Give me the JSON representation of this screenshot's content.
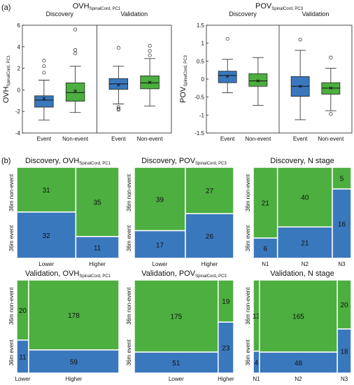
{
  "panel_labels": {
    "a": "(a)",
    "b": "(b)"
  },
  "colors": {
    "event": "#3a78be",
    "nonevent": "#4caf3f",
    "outline": "#1a1a1a",
    "divider": "#ffffff"
  },
  "chart_data": [
    {
      "type": "box",
      "title_main": "OVH",
      "title_sub": "SpinalCord, PC1",
      "ylabel_main": "OVH",
      "ylabel_sub": "SpinalCord, PC1",
      "ylim": [
        -4,
        6
      ],
      "yticks": [
        -4,
        -2,
        0,
        2,
        4,
        6
      ],
      "groups": [
        {
          "name": "Discovery",
          "boxes": [
            {
              "category": "Event",
              "color": "#3a78be",
              "whisker_low": -2.8,
              "q1": -1.6,
              "median": -0.95,
              "q3": -0.55,
              "whisker_high": 0.9,
              "mean": -0.8,
              "outliers": [
                1.6,
                2.2,
                2.7
              ]
            },
            {
              "category": "Non-event",
              "color": "#4caf3f",
              "whisker_low": -2.1,
              "q1": -1.05,
              "median": -0.25,
              "q3": 0.65,
              "whisker_high": 2.2,
              "mean": -0.1,
              "outliers": [
                3.4,
                3.7,
                5.6
              ]
            }
          ]
        },
        {
          "name": "Validation",
          "boxes": [
            {
              "category": "Event",
              "color": "#3a78be",
              "whisker_low": -1.3,
              "q1": 0.05,
              "median": 0.55,
              "q3": 1.05,
              "whisker_high": 2.2,
              "mean": 0.45,
              "outliers": [
                -1.6,
                -1.75,
                -1.85,
                3.9
              ]
            },
            {
              "category": "Non-event",
              "color": "#4caf3f",
              "whisker_low": -1.5,
              "q1": 0.1,
              "median": 0.65,
              "q3": 1.3,
              "whisker_high": 2.9,
              "mean": 0.7,
              "outliers": [
                3.2,
                3.6,
                4.1
              ]
            }
          ]
        }
      ]
    },
    {
      "type": "box",
      "title_main": "POV",
      "title_sub": "SpinalCord, PC3",
      "ylabel_main": "POV",
      "ylabel_sub": "SpinalCord, PC3",
      "ylim": [
        -1.5,
        1.5
      ],
      "yticks": [
        -1.5,
        -1,
        -0.5,
        0,
        0.5,
        1,
        1.5
      ],
      "groups": [
        {
          "name": "Discovery",
          "boxes": [
            {
              "category": "Event",
              "color": "#3a78be",
              "whisker_low": -0.38,
              "q1": -0.1,
              "median": 0.1,
              "q3": 0.22,
              "whisker_high": 0.55,
              "mean": 0.08,
              "outliers": [
                1.12
              ]
            },
            {
              "category": "Non-event",
              "color": "#4caf3f",
              "whisker_low": -0.73,
              "q1": -0.2,
              "median": -0.05,
              "q3": 0.15,
              "whisker_high": 0.6,
              "mean": -0.05,
              "outliers": []
            }
          ]
        },
        {
          "name": "Validation",
          "boxes": [
            {
              "category": "Event",
              "color": "#3a78be",
              "whisker_low": -1.13,
              "q1": -0.48,
              "median": -0.2,
              "q3": 0.07,
              "whisker_high": 0.8,
              "mean": -0.2,
              "outliers": [
                1.1
              ]
            },
            {
              "category": "Non-event",
              "color": "#4caf3f",
              "whisker_low": -0.88,
              "q1": -0.42,
              "median": -0.25,
              "q3": -0.1,
              "whisker_high": 0.3,
              "mean": -0.25,
              "outliers": [
                0.6,
                -0.97
              ]
            }
          ]
        }
      ]
    },
    {
      "type": "mosaic",
      "title_main": "Discovery, OVH",
      "title_sub": "SpinalCord, PC1",
      "ylabels": [
        "36m event",
        "36m non-event"
      ],
      "categories": [
        "Lower",
        "Higher"
      ],
      "event": [
        32,
        11
      ],
      "nonevent": [
        31,
        35
      ]
    },
    {
      "type": "mosaic",
      "title_main": "Discovery, POV",
      "title_sub": "SpinalCord, PC3",
      "ylabels": [
        "36m event",
        "36m non-event"
      ],
      "categories": [
        "Lower",
        "Higher"
      ],
      "event": [
        17,
        26
      ],
      "nonevent": [
        39,
        27
      ]
    },
    {
      "type": "mosaic",
      "title_main": "Discovery, N stage",
      "title_sub": "",
      "ylabels": [
        "36m event",
        "36m non-event"
      ],
      "categories": [
        "N1",
        "N2",
        "N3"
      ],
      "event": [
        6,
        21,
        16
      ],
      "nonevent": [
        21,
        40,
        5
      ]
    },
    {
      "type": "mosaic",
      "title_main": "Validation, OVH",
      "title_sub": "SpinalCord, PC1",
      "ylabels": [
        "36m event",
        "36m non-event"
      ],
      "categories": [
        "Lower",
        "Higher"
      ],
      "event": [
        11,
        59
      ],
      "nonevent": [
        20,
        178
      ]
    },
    {
      "type": "mosaic",
      "title_main": "Validation, POV",
      "title_sub": "SpinalCord, PC3",
      "ylabels": [
        "36m event",
        "36m non-event"
      ],
      "categories": [
        "Lower",
        "Higher"
      ],
      "event": [
        51,
        23
      ],
      "nonevent": [
        175,
        19
      ]
    },
    {
      "type": "mosaic",
      "title_main": "Validation, N stage",
      "title_sub": "",
      "ylabels": [
        "36m event",
        "36m non-event"
      ],
      "categories": [
        "N1",
        "N2",
        "N3"
      ],
      "event": [
        4,
        48,
        18
      ],
      "nonevent": [
        13,
        165,
        20
      ]
    }
  ]
}
